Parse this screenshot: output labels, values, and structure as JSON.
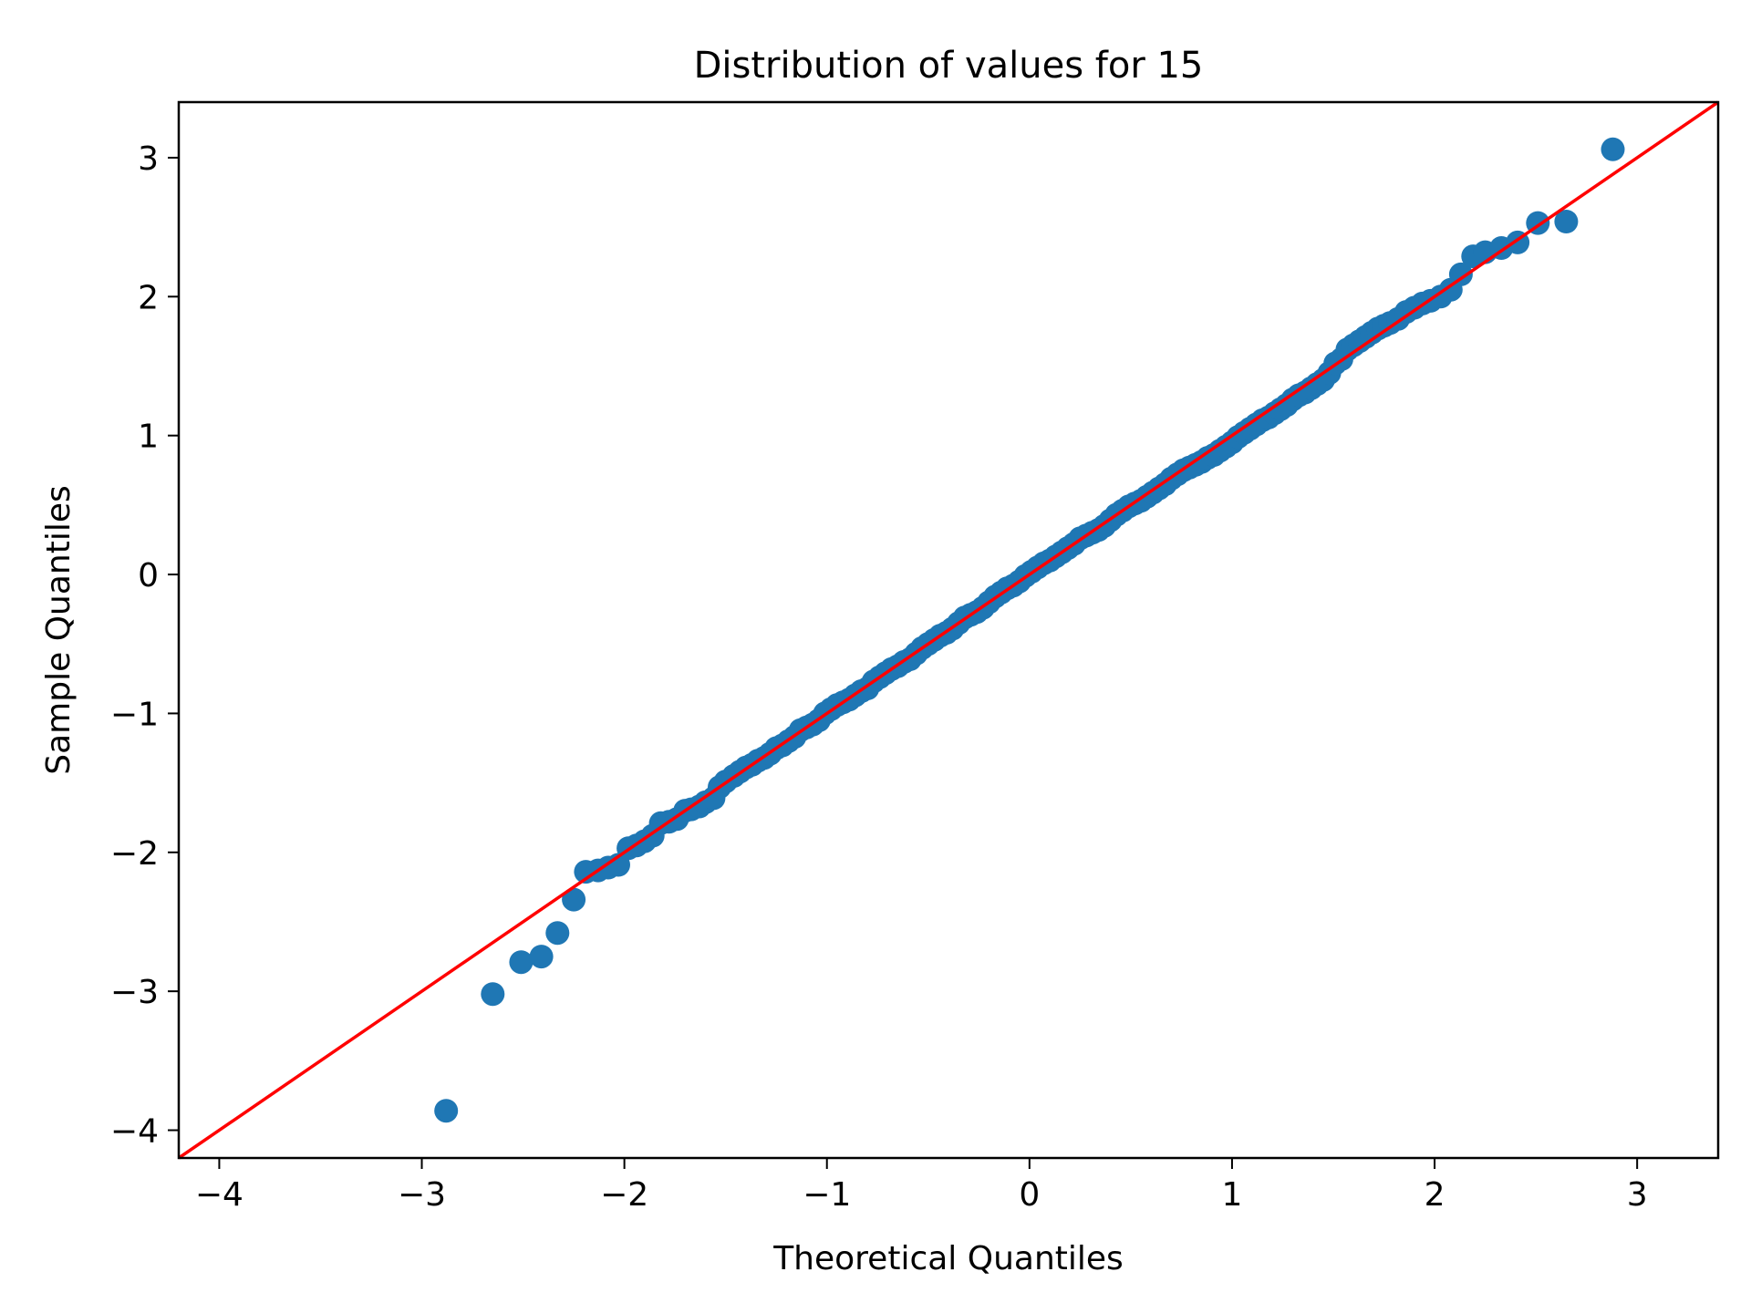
{
  "chart_data": {
    "type": "scatter",
    "title": "Distribution of values for 15",
    "xlabel": "Theoretical Quantiles",
    "ylabel": "Sample Quantiles",
    "xlim": [
      -4.2,
      3.4
    ],
    "ylim": [
      -4.2,
      3.4
    ],
    "xticks": [
      -4,
      -3,
      -2,
      -1,
      0,
      1,
      2,
      3
    ],
    "yticks": [
      -4,
      -3,
      -2,
      -1,
      0,
      1,
      2,
      3
    ],
    "xtick_labels": [
      "−4",
      "−3",
      "−2",
      "−1",
      "0",
      "1",
      "2",
      "3"
    ],
    "ytick_labels": [
      "−4",
      "−3",
      "−2",
      "−1",
      "0",
      "1",
      "2",
      "3"
    ],
    "grid": false,
    "colors": {
      "points": "#1f77b4",
      "reference_line": "#ff0000"
    },
    "reference_line": {
      "slope": 1,
      "intercept": 0
    },
    "points": [
      [
        -2.88,
        -3.86
      ],
      [
        -2.65,
        -3.02
      ],
      [
        -2.51,
        -2.79
      ],
      [
        -2.41,
        -2.75
      ],
      [
        -2.33,
        -2.58
      ],
      [
        -2.25,
        -2.34
      ],
      [
        -2.19,
        -2.14
      ],
      [
        -2.13,
        -2.13
      ],
      [
        -2.08,
        -2.11
      ],
      [
        -2.03,
        -2.09
      ],
      [
        -1.98,
        -1.97
      ],
      [
        -1.94,
        -1.95
      ],
      [
        -1.9,
        -1.92
      ],
      [
        -1.86,
        -1.88
      ],
      [
        -1.82,
        -1.79
      ],
      [
        -1.78,
        -1.78
      ],
      [
        -1.74,
        -1.76
      ],
      [
        -1.7,
        -1.7
      ],
      [
        -1.67,
        -1.69
      ],
      [
        -1.63,
        -1.67
      ],
      [
        -1.6,
        -1.64
      ],
      [
        -1.56,
        -1.61
      ],
      [
        -1.53,
        -1.53
      ],
      [
        -1.5,
        -1.49
      ],
      [
        -1.46,
        -1.45
      ],
      [
        -1.43,
        -1.42
      ],
      [
        -1.4,
        -1.39
      ],
      [
        -1.37,
        -1.37
      ],
      [
        -1.34,
        -1.34
      ],
      [
        -1.31,
        -1.32
      ],
      [
        -1.28,
        -1.29
      ],
      [
        -1.25,
        -1.25
      ],
      [
        -1.22,
        -1.23
      ],
      [
        -1.19,
        -1.2
      ],
      [
        -1.16,
        -1.17
      ],
      [
        -1.13,
        -1.12
      ],
      [
        -1.1,
        -1.1
      ],
      [
        -1.07,
        -1.08
      ],
      [
        -1.04,
        -1.05
      ],
      [
        -1.01,
        -1.0
      ],
      [
        -0.98,
        -0.97
      ],
      [
        -0.95,
        -0.94
      ],
      [
        -0.92,
        -0.92
      ],
      [
        -0.89,
        -0.9
      ],
      [
        -0.86,
        -0.87
      ],
      [
        -0.83,
        -0.84
      ],
      [
        -0.8,
        -0.82
      ],
      [
        -0.77,
        -0.77
      ],
      [
        -0.74,
        -0.74
      ],
      [
        -0.71,
        -0.71
      ],
      [
        -0.68,
        -0.68
      ],
      [
        -0.65,
        -0.66
      ],
      [
        -0.62,
        -0.63
      ],
      [
        -0.59,
        -0.61
      ],
      [
        -0.56,
        -0.57
      ],
      [
        -0.53,
        -0.53
      ],
      [
        -0.5,
        -0.5
      ],
      [
        -0.47,
        -0.47
      ],
      [
        -0.44,
        -0.44
      ],
      [
        -0.41,
        -0.42
      ],
      [
        -0.38,
        -0.39
      ],
      [
        -0.35,
        -0.35
      ],
      [
        -0.32,
        -0.31
      ],
      [
        -0.29,
        -0.29
      ],
      [
        -0.26,
        -0.27
      ],
      [
        -0.23,
        -0.24
      ],
      [
        -0.2,
        -0.2
      ],
      [
        -0.17,
        -0.16
      ],
      [
        -0.14,
        -0.13
      ],
      [
        -0.11,
        -0.1
      ],
      [
        -0.08,
        -0.08
      ],
      [
        -0.05,
        -0.05
      ],
      [
        -0.02,
        -0.01
      ],
      [
        0.01,
        0.02
      ],
      [
        0.04,
        0.05
      ],
      [
        0.07,
        0.08
      ],
      [
        0.1,
        0.1
      ],
      [
        0.13,
        0.13
      ],
      [
        0.16,
        0.16
      ],
      [
        0.19,
        0.19
      ],
      [
        0.22,
        0.22
      ],
      [
        0.25,
        0.26
      ],
      [
        0.28,
        0.28
      ],
      [
        0.31,
        0.3
      ],
      [
        0.34,
        0.32
      ],
      [
        0.37,
        0.35
      ],
      [
        0.4,
        0.39
      ],
      [
        0.43,
        0.43
      ],
      [
        0.46,
        0.46
      ],
      [
        0.49,
        0.49
      ],
      [
        0.52,
        0.51
      ],
      [
        0.55,
        0.53
      ],
      [
        0.58,
        0.56
      ],
      [
        0.61,
        0.59
      ],
      [
        0.64,
        0.62
      ],
      [
        0.67,
        0.65
      ],
      [
        0.7,
        0.69
      ],
      [
        0.73,
        0.72
      ],
      [
        0.76,
        0.75
      ],
      [
        0.79,
        0.77
      ],
      [
        0.82,
        0.79
      ],
      [
        0.85,
        0.81
      ],
      [
        0.88,
        0.84
      ],
      [
        0.91,
        0.86
      ],
      [
        0.94,
        0.89
      ],
      [
        0.97,
        0.92
      ],
      [
        1.0,
        0.95
      ],
      [
        1.03,
        0.99
      ],
      [
        1.06,
        1.02
      ],
      [
        1.09,
        1.05
      ],
      [
        1.12,
        1.08
      ],
      [
        1.15,
        1.11
      ],
      [
        1.18,
        1.13
      ],
      [
        1.21,
        1.16
      ],
      [
        1.24,
        1.19
      ],
      [
        1.27,
        1.22
      ],
      [
        1.3,
        1.26
      ],
      [
        1.33,
        1.29
      ],
      [
        1.36,
        1.31
      ],
      [
        1.39,
        1.34
      ],
      [
        1.42,
        1.37
      ],
      [
        1.45,
        1.4
      ],
      [
        1.48,
        1.45
      ],
      [
        1.51,
        1.52
      ],
      [
        1.54,
        1.55
      ],
      [
        1.57,
        1.62
      ],
      [
        1.6,
        1.65
      ],
      [
        1.63,
        1.68
      ],
      [
        1.66,
        1.71
      ],
      [
        1.69,
        1.74
      ],
      [
        1.72,
        1.77
      ],
      [
        1.75,
        1.79
      ],
      [
        1.78,
        1.81
      ],
      [
        1.82,
        1.84
      ],
      [
        1.86,
        1.89
      ],
      [
        1.9,
        1.92
      ],
      [
        1.94,
        1.95
      ],
      [
        1.98,
        1.97
      ],
      [
        2.03,
        2.0
      ],
      [
        2.08,
        2.05
      ],
      [
        2.13,
        2.16
      ],
      [
        2.19,
        2.29
      ],
      [
        2.25,
        2.32
      ],
      [
        2.33,
        2.35
      ],
      [
        2.41,
        2.39
      ],
      [
        2.51,
        2.53
      ],
      [
        2.65,
        2.54
      ],
      [
        2.88,
        3.06
      ]
    ]
  }
}
